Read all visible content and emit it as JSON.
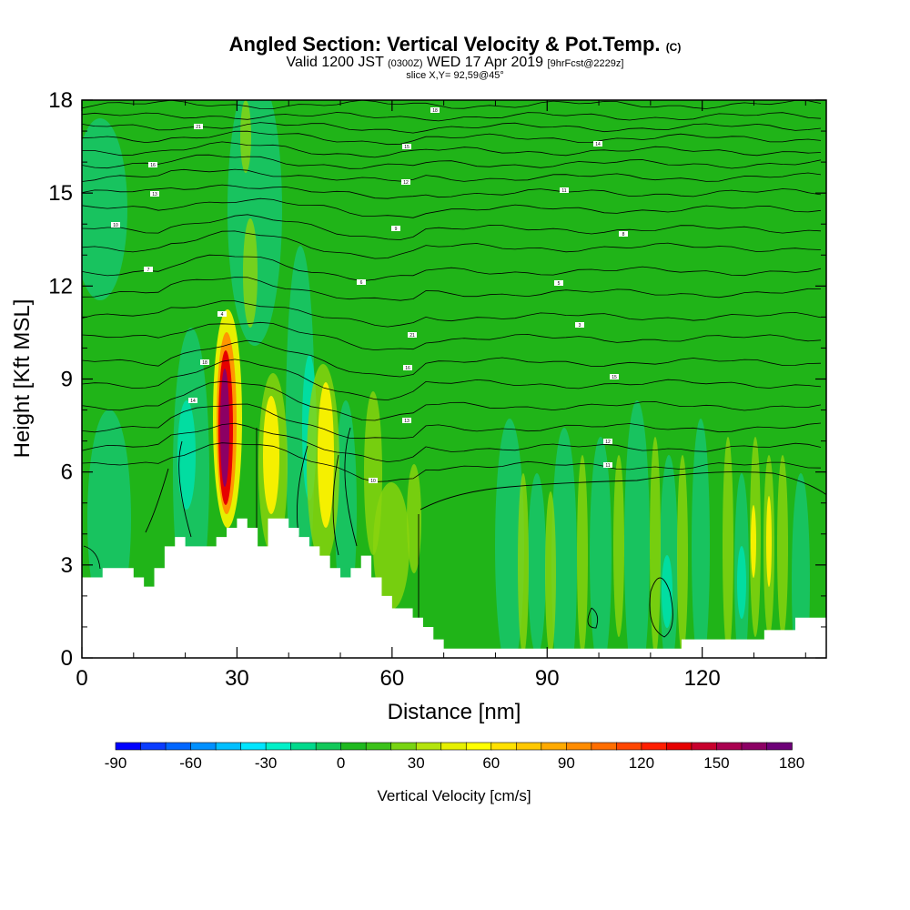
{
  "header": {
    "title_main": "Angled Section: Vertical Velocity & Pot.Temp.",
    "title_unit": "(C)",
    "valid_prefix": "Valid 1200 JST",
    "valid_utc": "(0300Z)",
    "valid_date": "WED 17 Apr 2019",
    "forecast": "[9hrFcst@2229z]",
    "slice": "slice X,Y= 92,59@45°"
  },
  "chart_data": {
    "type": "heatmap",
    "xlabel": "Distance [nm]",
    "ylabel": "Height [Kft MSL]",
    "xlim": [
      0,
      144
    ],
    "ylim": [
      0,
      18
    ],
    "x_ticks": [
      0,
      30,
      60,
      90,
      120
    ],
    "y_ticks": [
      0,
      3,
      6,
      9,
      12,
      15,
      18
    ],
    "colorbar": {
      "label": "Vertical Velocity [cm/s]",
      "ticks": [
        -90,
        -60,
        -30,
        0,
        30,
        60,
        90,
        120,
        150,
        180
      ],
      "levels": [
        -90,
        -80,
        -70,
        -60,
        -50,
        -40,
        -30,
        -20,
        -10,
        0,
        10,
        20,
        30,
        40,
        50,
        60,
        70,
        80,
        90,
        100,
        110,
        120,
        130,
        140,
        150,
        160,
        170,
        180
      ],
      "colors": [
        "#0000ff",
        "#0a3cff",
        "#0066ff",
        "#0090ff",
        "#00bfff",
        "#00e5ff",
        "#00f0c8",
        "#00d98c",
        "#12c85a",
        "#1fb91f",
        "#3cc21a",
        "#78d412",
        "#b4e40c",
        "#e6f000",
        "#ffff00",
        "#ffe100",
        "#ffc800",
        "#ffaa00",
        "#ff8c00",
        "#ff6e00",
        "#ff4600",
        "#ff1e00",
        "#e60000",
        "#c8002d",
        "#aa0050",
        "#8c0064",
        "#6e0078"
      ]
    },
    "features": {
      "background_velocity": 0,
      "updraft_max_velocity": 170,
      "updraft_max_distance": 28,
      "updraft_top_kft": 11.2
    },
    "theta_labels": [
      "21",
      "18",
      "16",
      "15",
      "14",
      "13",
      "12",
      "11",
      "10",
      "9",
      "8",
      "7",
      "6",
      "5",
      "4",
      "3"
    ],
    "terrain": {
      "distance": [
        0,
        2,
        4,
        6,
        8,
        10,
        12,
        14,
        16,
        18,
        20,
        22,
        24,
        26,
        28,
        30,
        32,
        34,
        36,
        38,
        40,
        42,
        44,
        46,
        48,
        50,
        52,
        54,
        56,
        58,
        60,
        62,
        64,
        66,
        68,
        70,
        72,
        80,
        90,
        100,
        110,
        114,
        116,
        120,
        126,
        132,
        138,
        144
      ],
      "height_kft": [
        2.6,
        2.6,
        2.9,
        2.9,
        2.9,
        2.6,
        2.3,
        2.9,
        3.6,
        3.9,
        3.6,
        3.6,
        3.6,
        3.9,
        4.2,
        4.5,
        4.2,
        3.6,
        4.5,
        4.5,
        4.2,
        3.9,
        3.6,
        3.3,
        2.9,
        2.6,
        2.9,
        3.3,
        2.6,
        2.0,
        1.6,
        1.6,
        1.3,
        1.0,
        0.6,
        0.3,
        0.3,
        0.3,
        0.3,
        0.3,
        0.3,
        0.3,
        0.6,
        0.6,
        0.6,
        0.9,
        1.3,
        1.3
      ]
    }
  }
}
